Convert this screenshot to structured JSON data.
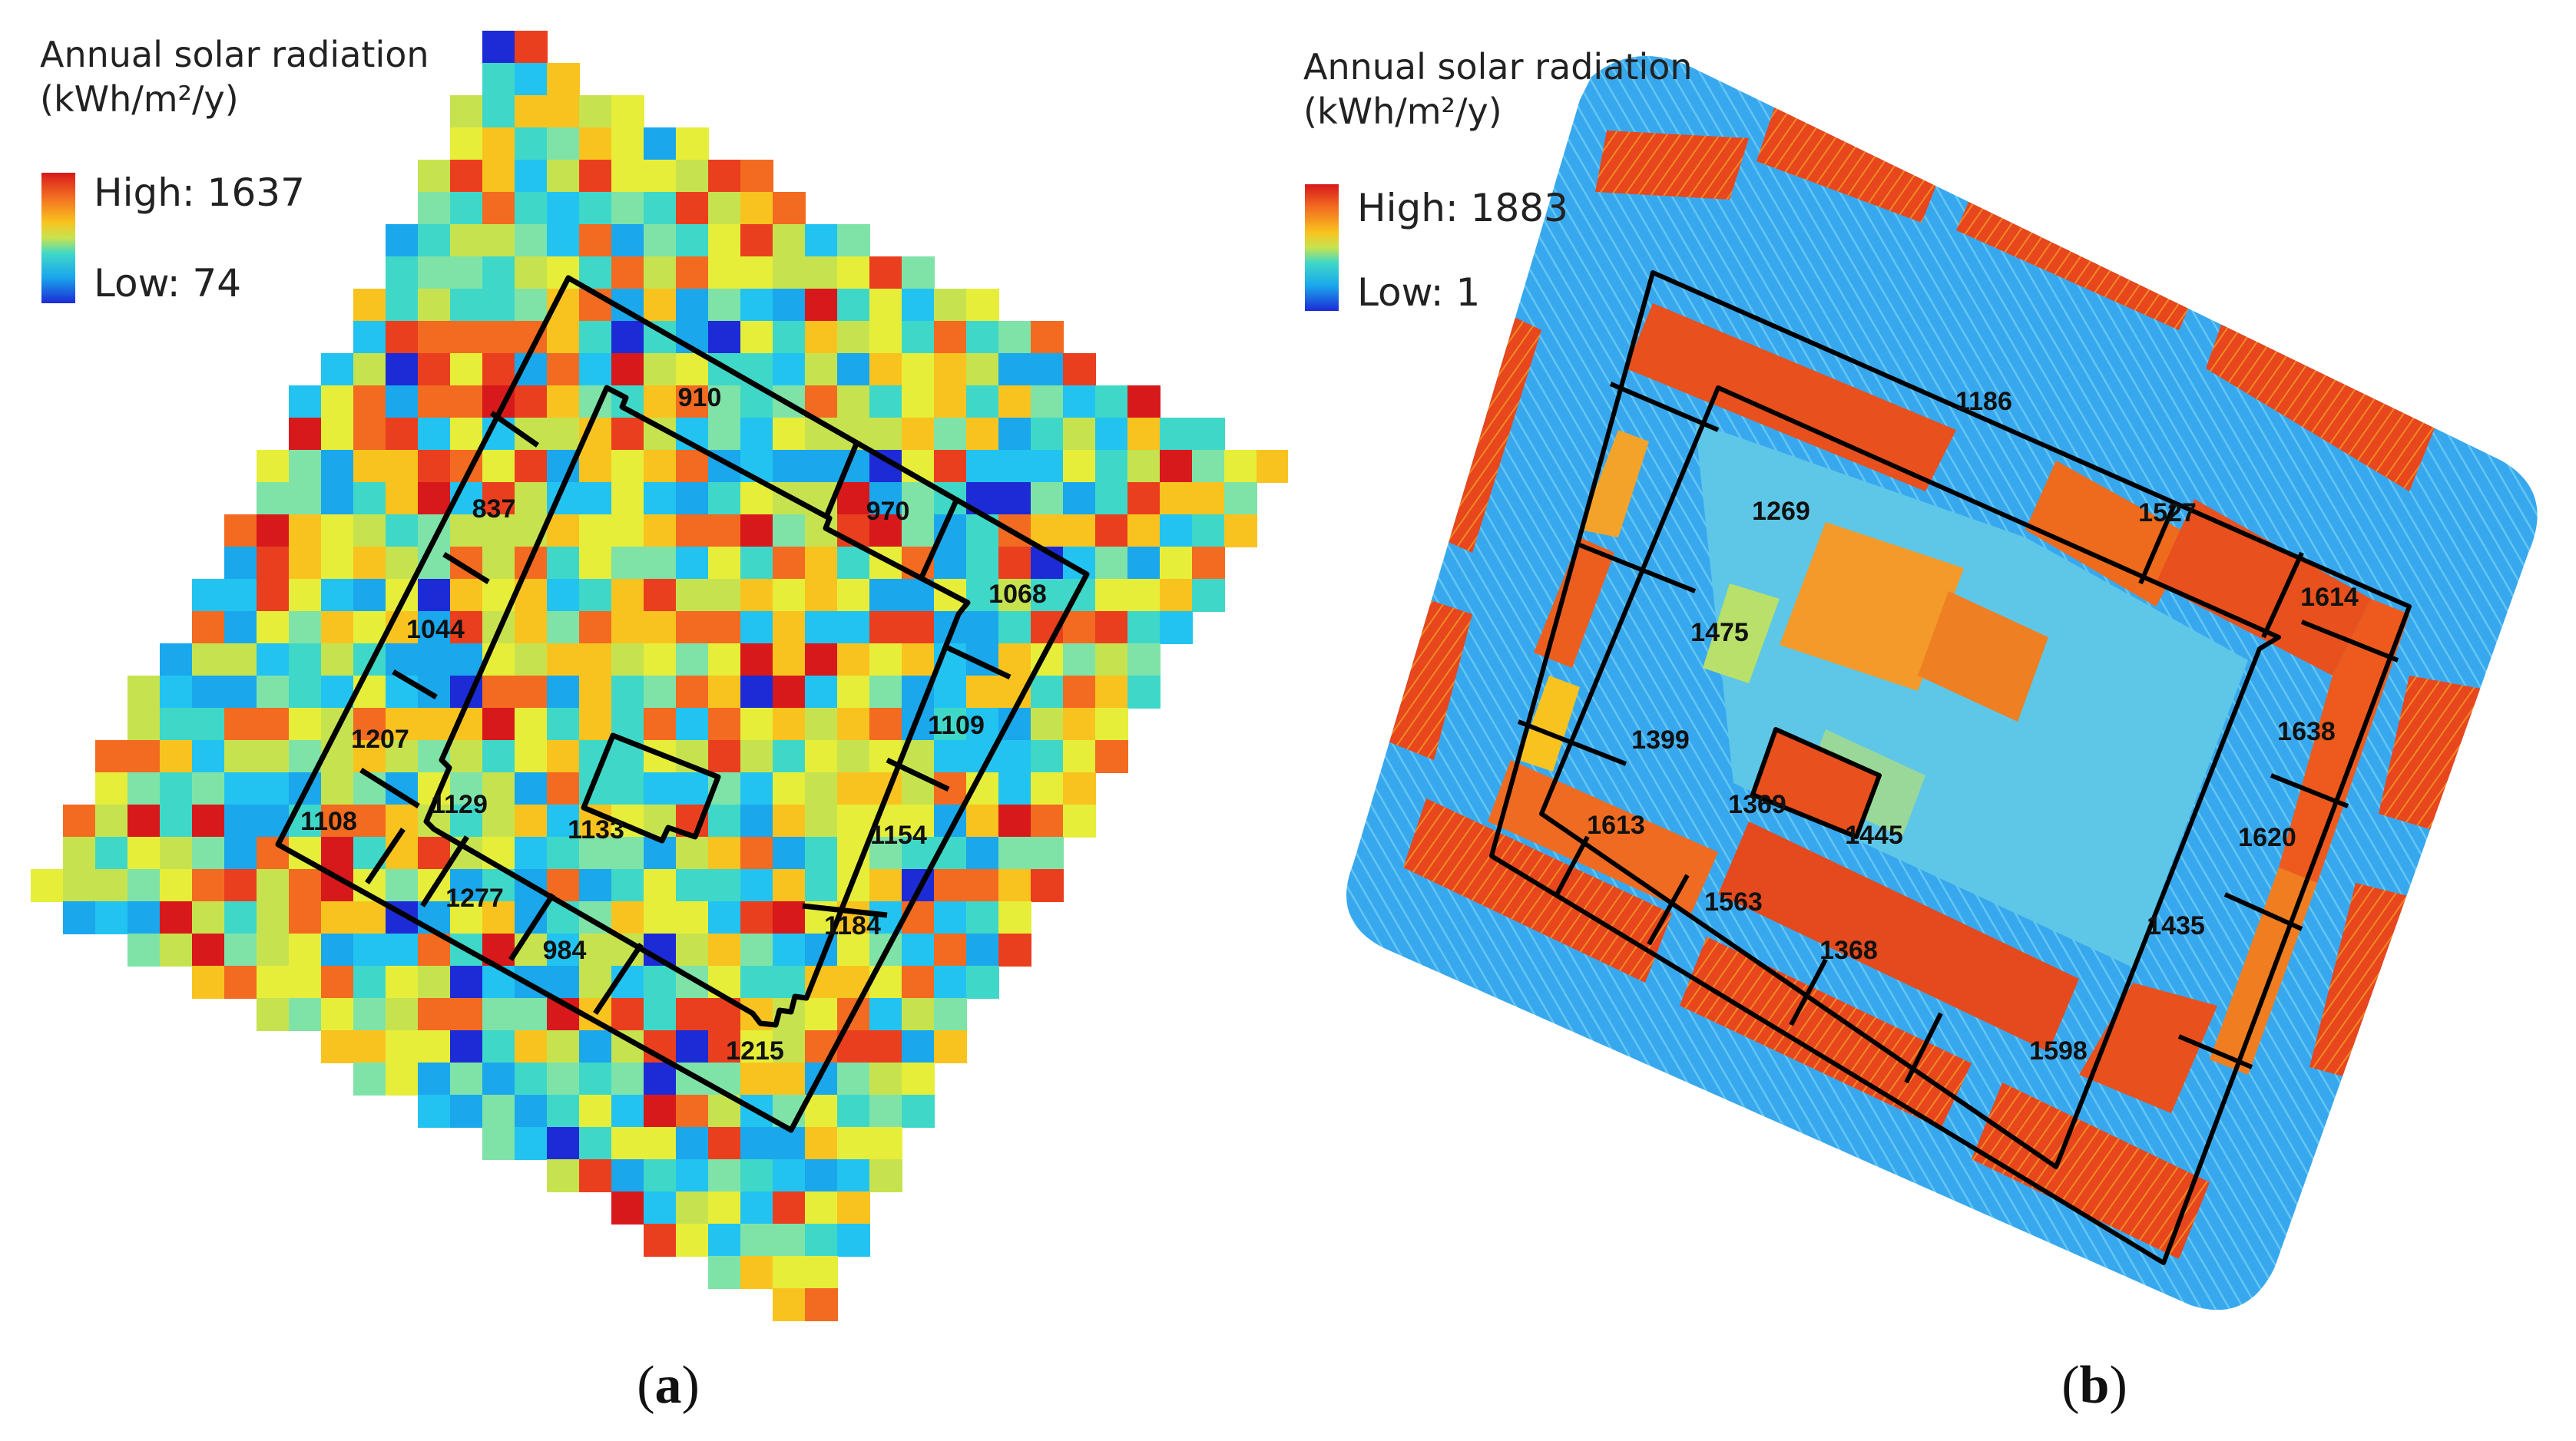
{
  "panels": [
    {
      "id": "a",
      "legend": {
        "title_line1": "Annual solar radiation",
        "title_unit": "(kWh/m²/y)",
        "high_label": "High: 1637",
        "low_label": "Low: 74",
        "high_value": 1637,
        "low_value": 74
      },
      "caption": "(a)",
      "caption_letter": "a",
      "zones": [
        {
          "id": "910",
          "label": "910"
        },
        {
          "id": "837",
          "label": "837"
        },
        {
          "id": "970",
          "label": "970"
        },
        {
          "id": "1068",
          "label": "1068"
        },
        {
          "id": "1044",
          "label": "1044"
        },
        {
          "id": "1207",
          "label": "1207"
        },
        {
          "id": "1109",
          "label": "1109"
        },
        {
          "id": "1129",
          "label": "1129"
        },
        {
          "id": "1133",
          "label": "1133"
        },
        {
          "id": "1108",
          "label": "1108"
        },
        {
          "id": "1154",
          "label": "1154"
        },
        {
          "id": "1277",
          "label": "1277"
        },
        {
          "id": "984",
          "label": "984"
        },
        {
          "id": "1184",
          "label": "1184"
        },
        {
          "id": "1215",
          "label": "1215"
        }
      ]
    },
    {
      "id": "b",
      "legend": {
        "title_line1": "Annual solar radiation",
        "title_unit": "(kWh/m²/y)",
        "high_label": "High: 1883",
        "low_label": "Low: 1",
        "high_value": 1883,
        "low_value": 1
      },
      "caption": "(b)",
      "caption_letter": "b",
      "zones": [
        {
          "id": "1186",
          "label": "1186"
        },
        {
          "id": "1269",
          "label": "1269"
        },
        {
          "id": "1527",
          "label": "1527"
        },
        {
          "id": "1614",
          "label": "1614"
        },
        {
          "id": "1475",
          "label": "1475"
        },
        {
          "id": "1638",
          "label": "1638"
        },
        {
          "id": "1399",
          "label": "1399"
        },
        {
          "id": "1369",
          "label": "1369"
        },
        {
          "id": "1445",
          "label": "1445"
        },
        {
          "id": "1613",
          "label": "1613"
        },
        {
          "id": "1620",
          "label": "1620"
        },
        {
          "id": "1563",
          "label": "1563"
        },
        {
          "id": "1368",
          "label": "1368"
        },
        {
          "id": "1435",
          "label": "1435"
        },
        {
          "id": "1598",
          "label": "1598"
        }
      ]
    }
  ],
  "colors": {
    "ramp_high": "#d7191c",
    "ramp_orange": "#f26b21",
    "ramp_yellow": "#f9c31f",
    "ramp_green": "#c6e34f",
    "ramp_cyan": "#3fd8c8",
    "ramp_blue": "#1aa7ec",
    "ramp_low": "#1d2bd6",
    "outline": "#000000"
  }
}
